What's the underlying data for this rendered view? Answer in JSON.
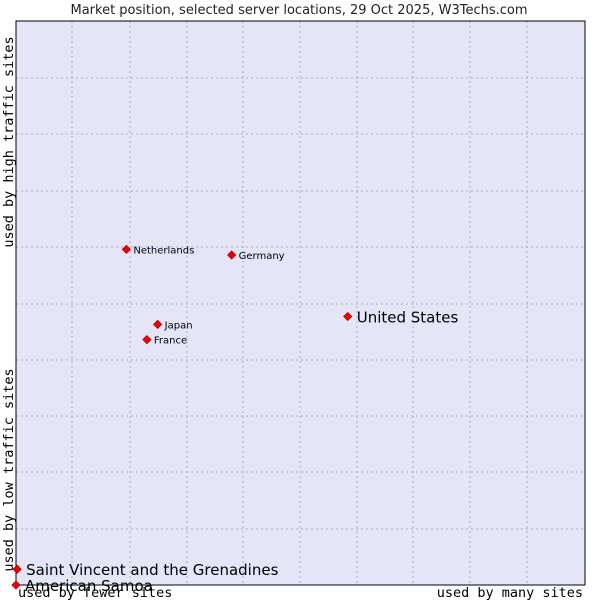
{
  "chart_data": {
    "type": "scatter",
    "title": "Market position, selected server locations, 29 Oct 2025, W3Techs.com",
    "xlabel_left": "used by fewer sites",
    "xlabel_right": "used by many sites",
    "ylabel_bottom": "used by low traffic sites",
    "ylabel_top": "used by high traffic sites",
    "xlim": [
      0,
      100
    ],
    "ylim": [
      0,
      100
    ],
    "grid": true,
    "colors": {
      "plot_bg": "#e4e6f8",
      "grid": "#aaaab8",
      "point": "#ee0000",
      "frame": "#000000"
    },
    "points": [
      {
        "label": "United States",
        "x": 58.3,
        "y": 47.6,
        "size": "large"
      },
      {
        "label": "Germany",
        "x": 37.9,
        "y": 58.5,
        "size": "small"
      },
      {
        "label": "Netherlands",
        "x": 19.4,
        "y": 59.5,
        "size": "small"
      },
      {
        "label": "Japan",
        "x": 24.9,
        "y": 46.2,
        "size": "small"
      },
      {
        "label": "France",
        "x": 23.0,
        "y": 43.5,
        "size": "small"
      },
      {
        "label": "Saint Vincent and the Grenadines",
        "x": 0.2,
        "y": 2.8,
        "size": "large"
      },
      {
        "label": "American Samoa",
        "x": 0.0,
        "y": 0.0,
        "size": "large"
      }
    ]
  }
}
